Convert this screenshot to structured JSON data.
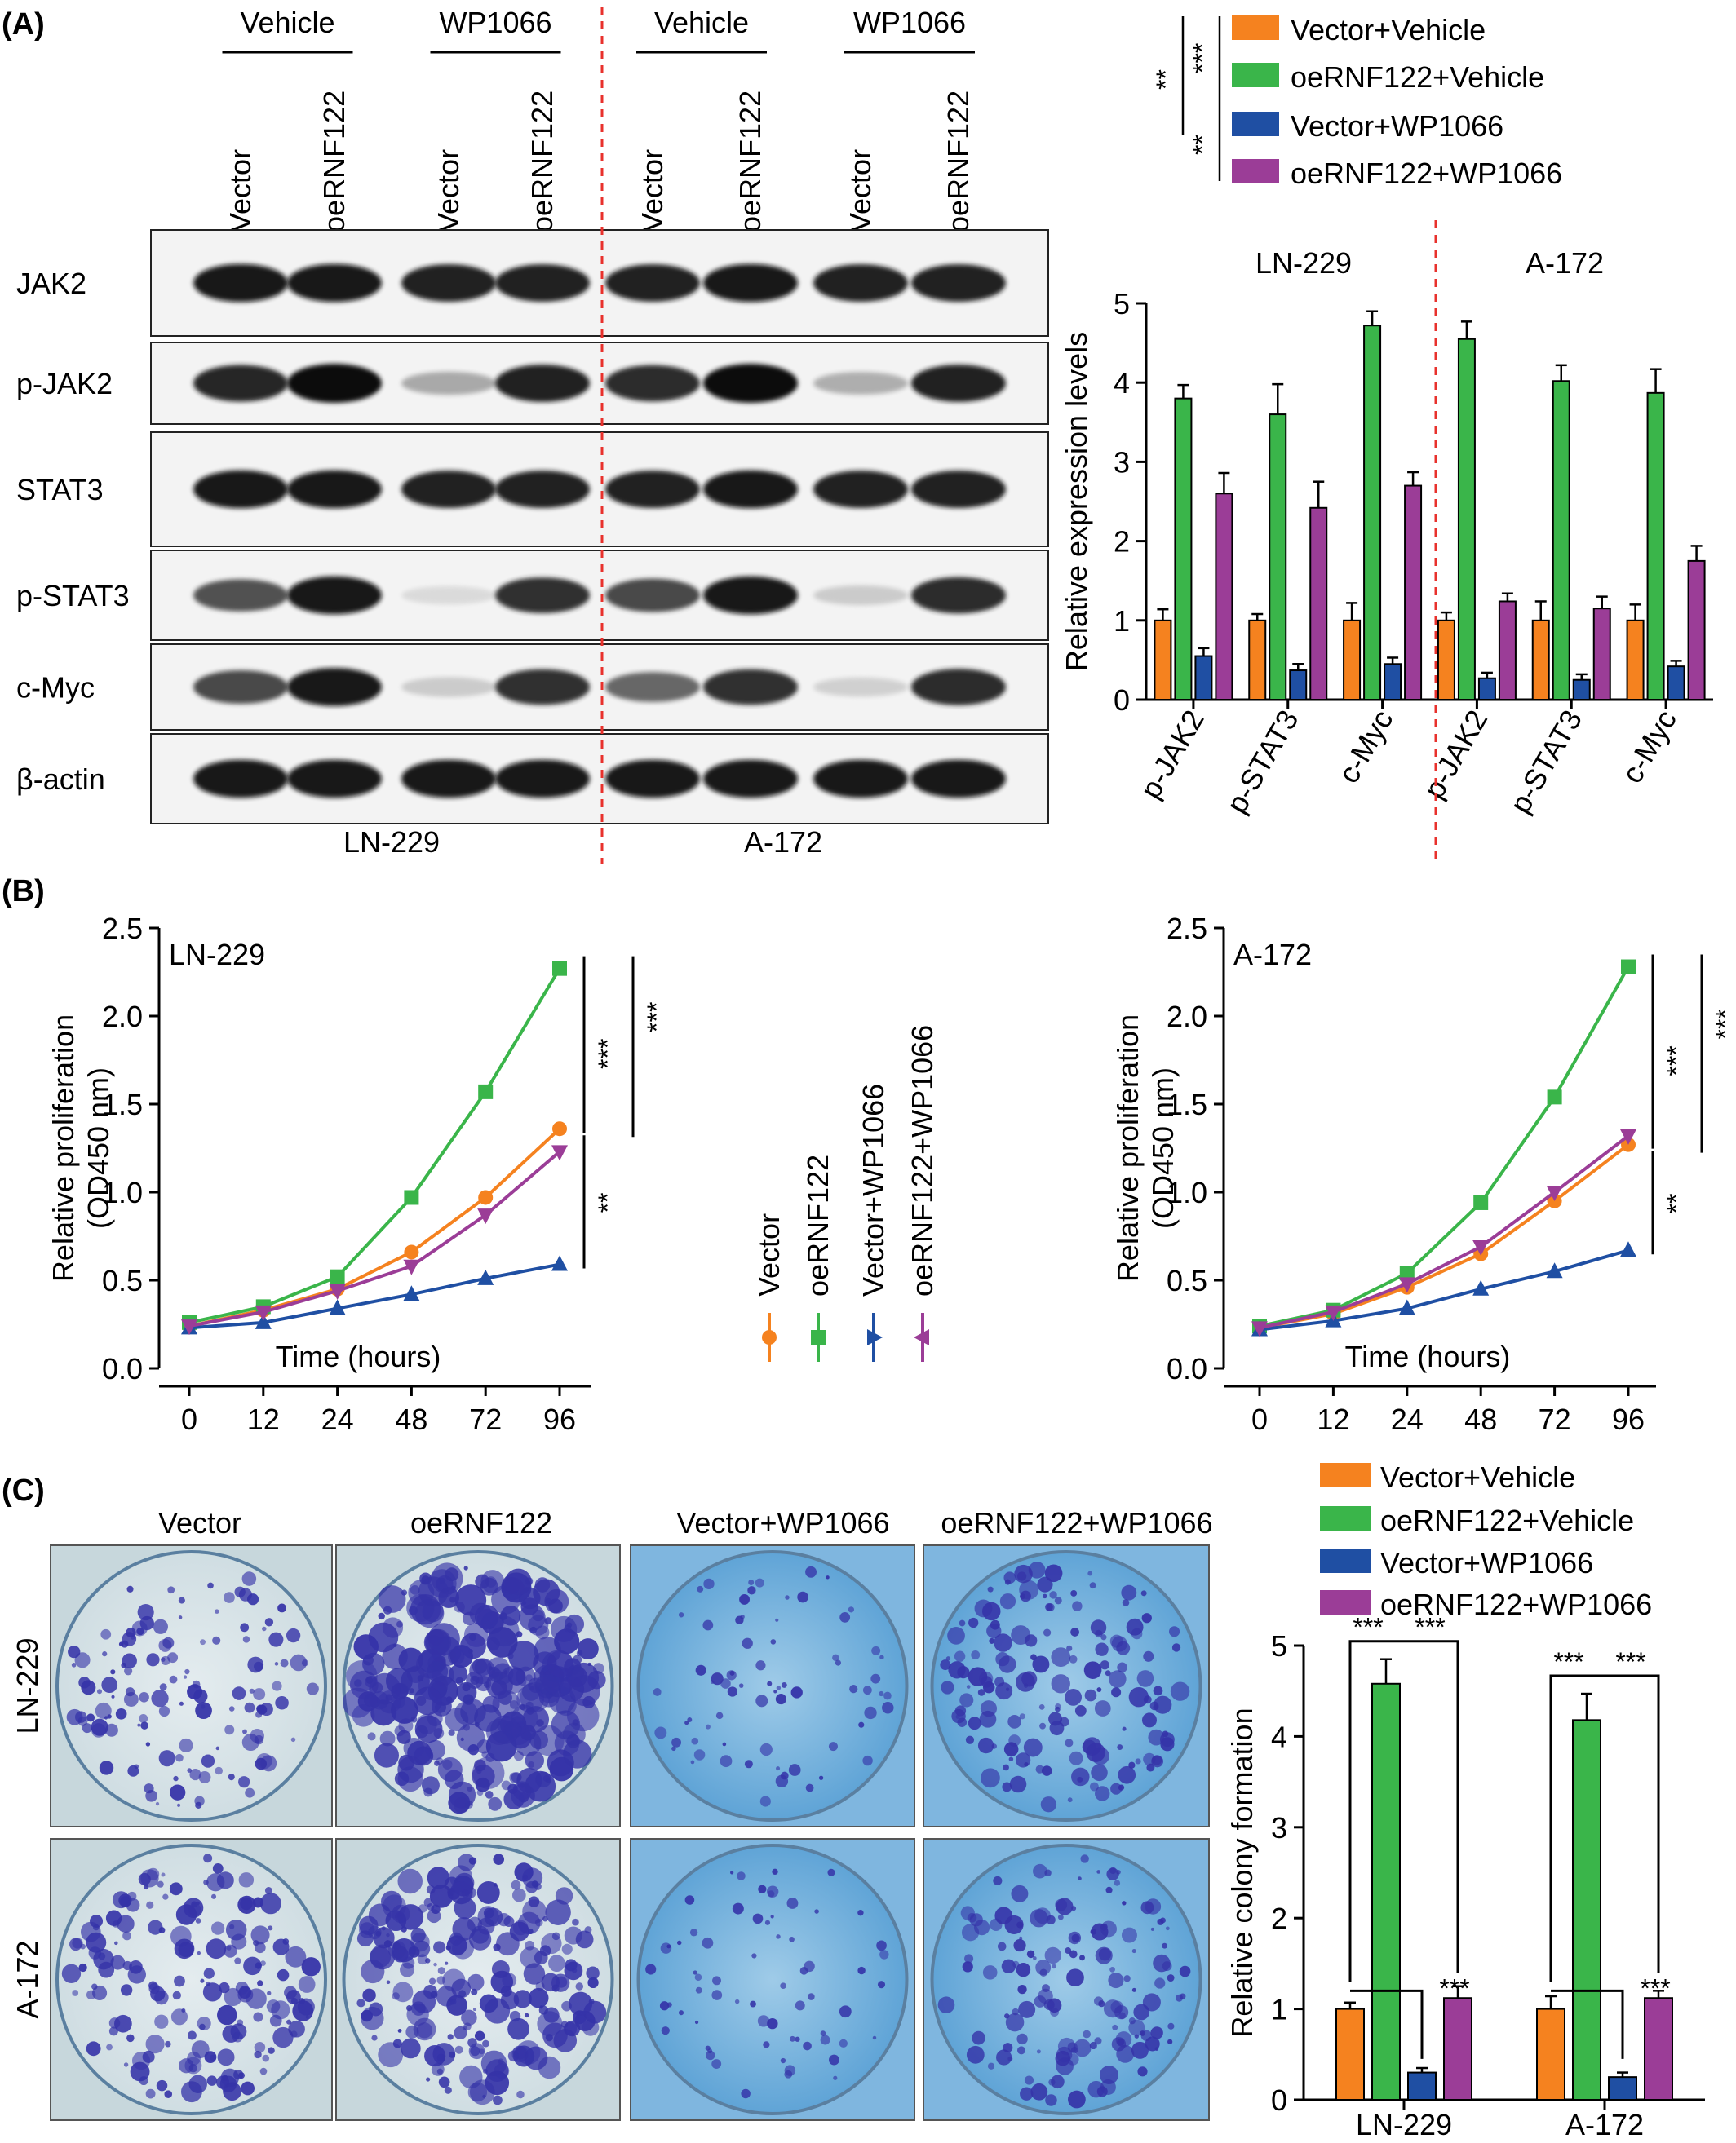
{
  "panel_labels": [
    "(A)",
    "(B)",
    "(C)"
  ],
  "colors": {
    "orange": "#f5821f",
    "green": "#3ab54a",
    "blue": "#1f4fa3",
    "purple": "#9b3d97",
    "divider": "#e8312c"
  },
  "panel_a": {
    "treatments": [
      "Vehicle",
      "WP1066",
      "Vehicle",
      "WP1066"
    ],
    "lanes": [
      "Vector",
      "oeRNF122",
      "Vector",
      "oeRNF122",
      "Vector",
      "oeRNF122",
      "Vector",
      "oeRNF122"
    ],
    "blot_rows": [
      "JAK2",
      "p-JAK2",
      "STAT3",
      "p-STAT3",
      "c-Myc",
      "β-actin"
    ],
    "cell_lines": [
      "LN-229",
      "A-172"
    ],
    "band_intensity": [
      [
        0.95,
        0.95,
        0.92,
        0.92,
        0.92,
        0.95,
        0.92,
        0.92
      ],
      [
        0.9,
        1.0,
        0.3,
        0.92,
        0.88,
        1.0,
        0.28,
        0.92
      ],
      [
        0.95,
        0.95,
        0.92,
        0.92,
        0.92,
        0.95,
        0.92,
        0.92
      ],
      [
        0.7,
        0.95,
        0.08,
        0.85,
        0.75,
        0.95,
        0.15,
        0.88
      ],
      [
        0.75,
        0.95,
        0.15,
        0.85,
        0.6,
        0.85,
        0.12,
        0.88
      ],
      [
        0.95,
        0.95,
        0.95,
        0.95,
        0.95,
        0.95,
        0.95,
        0.95
      ]
    ],
    "legend": [
      "Vector+Vehicle",
      "oeRNF122+Vehicle",
      "Vector+WP1066",
      "oeRNF122+WP1066"
    ],
    "significance": [
      "**",
      "***",
      "**"
    ]
  },
  "chart_data": [
    {
      "type": "bar",
      "panel": "A",
      "groups": [
        "LN-229",
        "A-172"
      ],
      "categories": [
        "p-JAK2",
        "p-STAT3",
        "c-Myc",
        "p-JAK2",
        "p-STAT3",
        "c-Myc"
      ],
      "ylabel": "Relative expression levels",
      "ylim": [
        0,
        5
      ],
      "yticks": [
        0,
        1,
        2,
        3,
        4,
        5
      ],
      "series": [
        {
          "name": "Vector+Vehicle",
          "values": [
            1.0,
            1.0,
            1.0,
            1.0,
            1.0,
            1.0
          ],
          "errors": [
            0.14,
            0.08,
            0.22,
            0.1,
            0.24,
            0.2
          ]
        },
        {
          "name": "oeRNF122+Vehicle",
          "values": [
            3.8,
            3.6,
            4.72,
            4.55,
            4.02,
            3.87
          ],
          "errors": [
            0.17,
            0.38,
            0.18,
            0.22,
            0.2,
            0.3
          ]
        },
        {
          "name": "Vector+WP1066",
          "values": [
            0.55,
            0.37,
            0.45,
            0.27,
            0.25,
            0.42
          ],
          "errors": [
            0.1,
            0.08,
            0.08,
            0.07,
            0.07,
            0.07
          ]
        },
        {
          "name": "oeRNF122+WP1066",
          "values": [
            2.6,
            2.42,
            2.7,
            1.24,
            1.15,
            1.75
          ],
          "errors": [
            0.26,
            0.33,
            0.17,
            0.1,
            0.15,
            0.19
          ]
        }
      ]
    },
    {
      "type": "line",
      "panel": "B",
      "title": "LN-229",
      "x": [
        0,
        12,
        24,
        48,
        72,
        96
      ],
      "xlabel": "Time (hours)",
      "ylabel": "Relative proliferation",
      "ylabel2": "(OD450 nm)",
      "ylim": [
        0,
        2.5
      ],
      "yticks": [
        "0.0",
        "0.5",
        "1.0",
        "1.5",
        "2.0",
        "2.5"
      ],
      "series": [
        {
          "name": "Vector",
          "values": [
            0.24,
            0.33,
            0.45,
            0.66,
            0.97,
            1.36
          ]
        },
        {
          "name": "oeRNF122",
          "values": [
            0.26,
            0.35,
            0.52,
            0.97,
            1.57,
            2.27
          ]
        },
        {
          "name": "Vector+WP1066",
          "values": [
            0.23,
            0.26,
            0.34,
            0.42,
            0.51,
            0.59
          ]
        },
        {
          "name": "oeRNF122+WP1066",
          "values": [
            0.24,
            0.32,
            0.44,
            0.58,
            0.87,
            1.23
          ]
        }
      ],
      "significance": [
        "***",
        "***",
        "**"
      ]
    },
    {
      "type": "line",
      "panel": "B",
      "title": "A-172",
      "x": [
        0,
        12,
        24,
        48,
        72,
        96
      ],
      "xlabel": "Time (hours)",
      "ylabel": "Relative proliferation",
      "ylabel2": "(OD450 nm)",
      "ylim": [
        0,
        2.5
      ],
      "yticks": [
        "0.0",
        "0.5",
        "1.0",
        "1.5",
        "2.0",
        "2.5"
      ],
      "series": [
        {
          "name": "Vector",
          "values": [
            0.23,
            0.31,
            0.46,
            0.65,
            0.95,
            1.27
          ]
        },
        {
          "name": "oeRNF122",
          "values": [
            0.24,
            0.33,
            0.54,
            0.94,
            1.54,
            2.28
          ]
        },
        {
          "name": "Vector+WP1066",
          "values": [
            0.22,
            0.27,
            0.34,
            0.45,
            0.55,
            0.67
          ]
        },
        {
          "name": "oeRNF122+WP1066",
          "values": [
            0.23,
            0.32,
            0.48,
            0.69,
            1.0,
            1.32
          ]
        }
      ],
      "significance": [
        "***",
        "***",
        "**"
      ]
    },
    {
      "type": "bar",
      "panel": "C",
      "categories": [
        "LN-229",
        "A-172"
      ],
      "ylabel": "Relative colony formation",
      "ylim": [
        0,
        5
      ],
      "yticks": [
        0,
        1,
        2,
        3,
        4,
        5
      ],
      "series": [
        {
          "name": "Vector+Vehicle",
          "values": [
            1.0,
            1.0
          ],
          "errors": [
            0.07,
            0.14
          ]
        },
        {
          "name": "oeRNF122+Vehicle",
          "values": [
            4.58,
            4.18
          ],
          "errors": [
            0.27,
            0.29
          ]
        },
        {
          "name": "Vector+WP1066",
          "values": [
            0.3,
            0.25
          ],
          "errors": [
            0.05,
            0.05
          ]
        },
        {
          "name": "oeRNF122+WP1066",
          "values": [
            1.12,
            1.12
          ],
          "errors": [
            0.13,
            0.08
          ]
        }
      ],
      "significance": [
        "***",
        "***",
        "***"
      ]
    }
  ],
  "panel_b": {
    "legend": [
      "Vector",
      "oeRNF122",
      "Vector+WP1066",
      "oeRNF122+WP1066"
    ]
  },
  "panel_c": {
    "columns": [
      "Vector",
      "oeRNF122",
      "Vector+WP1066",
      "oeRNF122+WP1066"
    ],
    "rows": [
      "LN-229",
      "A-172"
    ],
    "colony_density": [
      [
        0.35,
        1.0,
        0.12,
        0.45
      ],
      [
        0.5,
        0.7,
        0.1,
        0.4
      ]
    ]
  }
}
